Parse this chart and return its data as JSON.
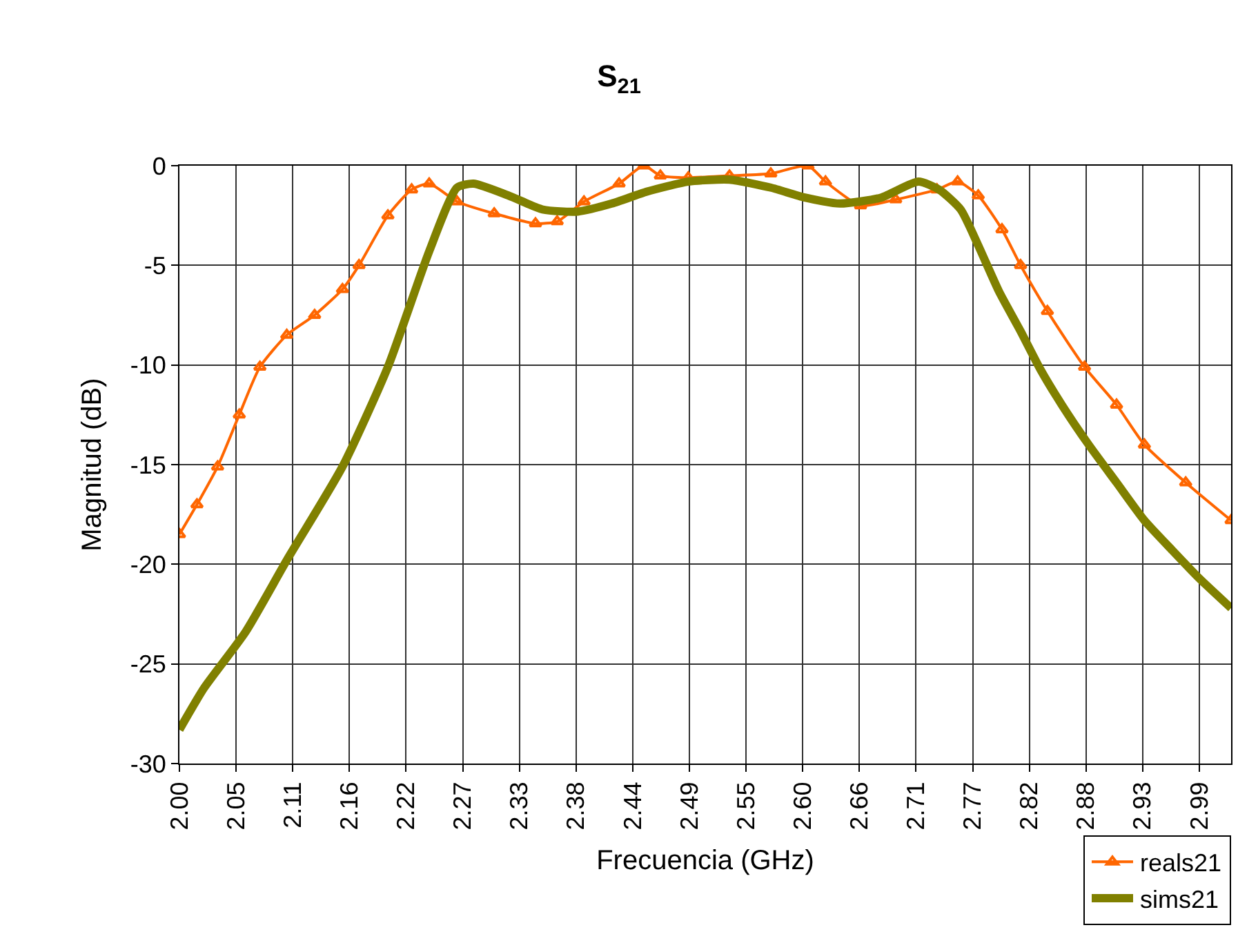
{
  "chart_data": {
    "type": "line",
    "title": "S$_{21}$",
    "xlabel": "Frecuencia (GHz)",
    "ylabel": "Magnitud (dB)",
    "xlim": [
      2.0,
      3.019
    ],
    "ylim": [
      -30,
      0
    ],
    "yticks": [
      -30,
      -25,
      -20,
      -15,
      -10,
      -5,
      0
    ],
    "xticks": [
      {
        "value": 2.0,
        "label": "2.00"
      },
      {
        "value": 2.0549,
        "label": "2.05"
      },
      {
        "value": 2.1098,
        "label": "2.11"
      },
      {
        "value": 2.1647,
        "label": "2.16"
      },
      {
        "value": 2.2196,
        "label": "2.22"
      },
      {
        "value": 2.2745,
        "label": "2.27"
      },
      {
        "value": 2.3294,
        "label": "2.33"
      },
      {
        "value": 2.3843,
        "label": "2.38"
      },
      {
        "value": 2.4392,
        "label": "2.44"
      },
      {
        "value": 2.4941,
        "label": "2.49"
      },
      {
        "value": 2.549,
        "label": "2.55"
      },
      {
        "value": 2.6039,
        "label": "2.60"
      },
      {
        "value": 2.6588,
        "label": "2.66"
      },
      {
        "value": 2.7137,
        "label": "2.71"
      },
      {
        "value": 2.7686,
        "label": "2.77"
      },
      {
        "value": 2.8235,
        "label": "2.82"
      },
      {
        "value": 2.8784,
        "label": "2.88"
      },
      {
        "value": 2.9333,
        "label": "2.93"
      },
      {
        "value": 2.9882,
        "label": "2.99"
      }
    ],
    "grid": true,
    "legend": "bottom right",
    "series": [
      {
        "name": "reals21",
        "color": "#ff6600",
        "marker": "triangle",
        "x": [
          2.0,
          2.017,
          2.037,
          2.058,
          2.078,
          2.104,
          2.131,
          2.158,
          2.174,
          2.202,
          2.225,
          2.242,
          2.269,
          2.305,
          2.345,
          2.366,
          2.392,
          2.426,
          2.45,
          2.466,
          2.493,
          2.533,
          2.573,
          2.609,
          2.626,
          2.66,
          2.694,
          2.734,
          2.754,
          2.774,
          2.797,
          2.815,
          2.841,
          2.877,
          2.908,
          2.935,
          2.975,
          3.019
        ],
        "values": [
          -18.5,
          -17,
          -15.1,
          -12.5,
          -10.1,
          -8.5,
          -7.5,
          -6.2,
          -5,
          -2.5,
          -1.2,
          -0.9,
          -1.8,
          -2.4,
          -2.9,
          -2.8,
          -1.8,
          -0.9,
          0,
          -0.5,
          -0.6,
          -0.5,
          -0.4,
          0,
          -0.8,
          -2.0,
          -1.7,
          -1.2,
          -0.8,
          -1.5,
          -3.2,
          -5,
          -7.3,
          -10.1,
          -12,
          -14.0,
          -15.9,
          -17.8
        ]
      },
      {
        "name": "sims21",
        "color": "#808000",
        "marker": "none",
        "x": [
          2.0,
          2.024,
          2.064,
          2.104,
          2.158,
          2.202,
          2.242,
          2.269,
          2.285,
          2.319,
          2.352,
          2.386,
          2.419,
          2.453,
          2.493,
          2.533,
          2.573,
          2.606,
          2.64,
          2.68,
          2.716,
          2.736,
          2.757,
          2.774,
          2.794,
          2.815,
          2.834,
          2.855,
          2.881,
          2.908,
          2.935,
          2.962,
          2.988,
          3.019
        ],
        "values": [
          -28.3,
          -26.2,
          -23.4,
          -19.8,
          -15.1,
          -10.1,
          -4.3,
          -1.1,
          -0.9,
          -1.5,
          -2.2,
          -2.3,
          -1.9,
          -1.3,
          -0.8,
          -0.7,
          -1.1,
          -1.6,
          -1.9,
          -1.6,
          -0.8,
          -1.2,
          -2.2,
          -4.0,
          -6.3,
          -8.3,
          -10.2,
          -12,
          -14,
          -15.9,
          -17.8,
          -19.3,
          -20.7,
          -22.2
        ]
      }
    ]
  }
}
